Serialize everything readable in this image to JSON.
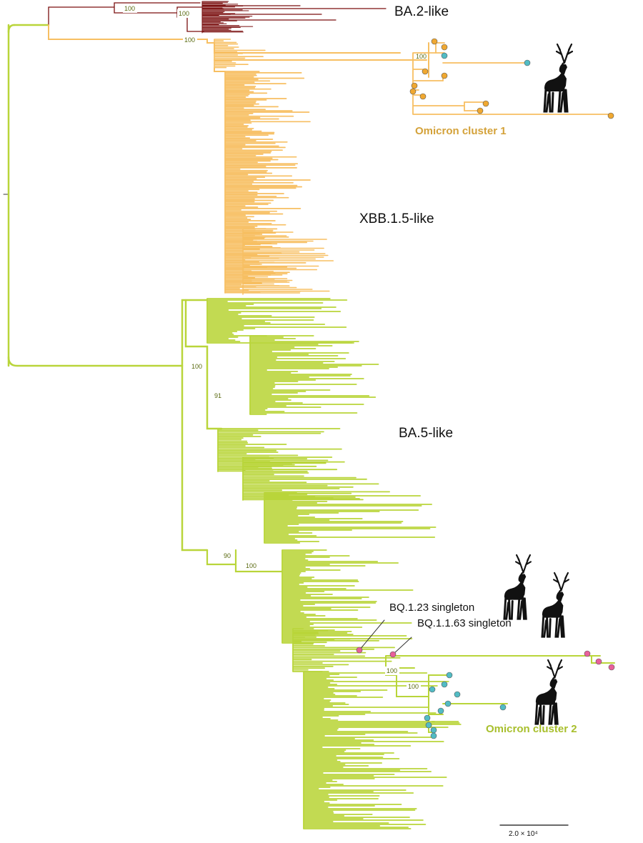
{
  "figure": {
    "clade_labels": {
      "ba2": "BA.2-like",
      "xbb": "XBB.1.5-like",
      "ba5": "BA.5-like"
    },
    "clusters": {
      "cluster1": "Omicron cluster 1",
      "cluster2": "Omicron cluster 2"
    },
    "singletons": {
      "bq123": "BQ.1.23 singleton",
      "bq1163": "BQ.1.1.63 singleton"
    },
    "bootstrap": {
      "ba2_a": "100",
      "ba2_b": "100",
      "xbb_root": "100",
      "cluster1": "100",
      "ba5_a": "100",
      "ba5_b": "91",
      "ba5_c": "90",
      "ba5_d": "100",
      "cluster2_a": "100",
      "cluster2_b": "100"
    },
    "scale_bar": "2.0 × 10⁴",
    "colors": {
      "ba2_branch": "#7a0f0f",
      "xbb_branch": "#f7bf62",
      "ba5_branch": "#b9d53a",
      "cluster_fill": "#fbf2b0",
      "orange_tip": "#f0a830",
      "teal_tip": "#52bcc4",
      "pink_tip": "#e8609a",
      "deer": "#111111",
      "cluster_text": "#d4a23a",
      "cluster2_text": "#a8bf2c",
      "bootstrap_text": "#5a6a10"
    },
    "icons": [
      "deer-icon"
    ]
  }
}
